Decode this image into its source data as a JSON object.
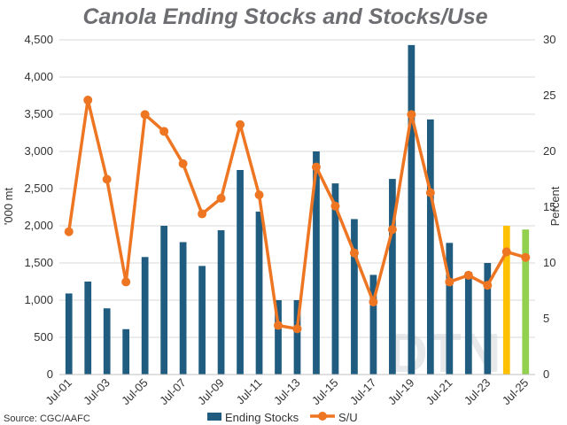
{
  "chart_data": {
    "type": "bar",
    "title": "Canola Ending Stocks and Stocks/Use",
    "ylabel_left": "'000 mt",
    "ylabel_right": "Percent",
    "ylim_left": [
      0,
      4500
    ],
    "ylim_right": [
      0,
      30
    ],
    "yticks_left": [
      "0",
      "500",
      "1,000",
      "1,500",
      "2,000",
      "2,500",
      "3,000",
      "3,500",
      "4,000",
      "4,500"
    ],
    "yticks_right": [
      "0",
      "5",
      "10",
      "15",
      "20",
      "25",
      "30"
    ],
    "categories": [
      "Jul-01",
      "Jul-02",
      "Jul-03",
      "Jul-04",
      "Jul-05",
      "Jul-06",
      "Jul-07",
      "Jul-08",
      "Jul-09",
      "Jul-10",
      "Jul-11",
      "Jul-12",
      "Jul-13",
      "Jul-14",
      "Jul-15",
      "Jul-16",
      "Jul-17",
      "Jul-18",
      "Jul-19",
      "Jul-20",
      "Jul-21",
      "Jul-22",
      "Jul-23",
      "Jul-24",
      "Jul-25"
    ],
    "xtick_labels": [
      "Jul-01",
      "Jul-03",
      "Jul-05",
      "Jul-07",
      "Jul-09",
      "Jul-11",
      "Jul-13",
      "Jul-15",
      "Jul-17",
      "Jul-19",
      "Jul-21",
      "Jul-23",
      "Jul-25"
    ],
    "grid": true,
    "legend_position": "bottom",
    "series": [
      {
        "name": "Ending Stocks",
        "type": "bar",
        "axis": "left",
        "color": "#1f5c7f",
        "values": [
          1090,
          1250,
          890,
          610,
          1580,
          2000,
          1780,
          1460,
          1940,
          2750,
          2190,
          1000,
          1000,
          3000,
          2570,
          2090,
          1340,
          2630,
          4430,
          3430,
          1770,
          1380,
          1500,
          2000,
          1950
        ],
        "bar_colors": {
          "23": "#ffc000",
          "24": "#92d050"
        }
      },
      {
        "name": "S/U",
        "type": "line",
        "axis": "right",
        "color": "#ee7623",
        "values": [
          12.8,
          24.6,
          17.5,
          8.3,
          23.3,
          21.8,
          18.9,
          14.4,
          15.8,
          22.4,
          16.1,
          4.4,
          4.1,
          18.6,
          15.1,
          10.9,
          6.5,
          13.0,
          23.3,
          16.3,
          8.3,
          8.9,
          8.0,
          11.0,
          10.5
        ]
      }
    ]
  },
  "source": "Source: CGC/AAFC",
  "watermark": "DTN"
}
